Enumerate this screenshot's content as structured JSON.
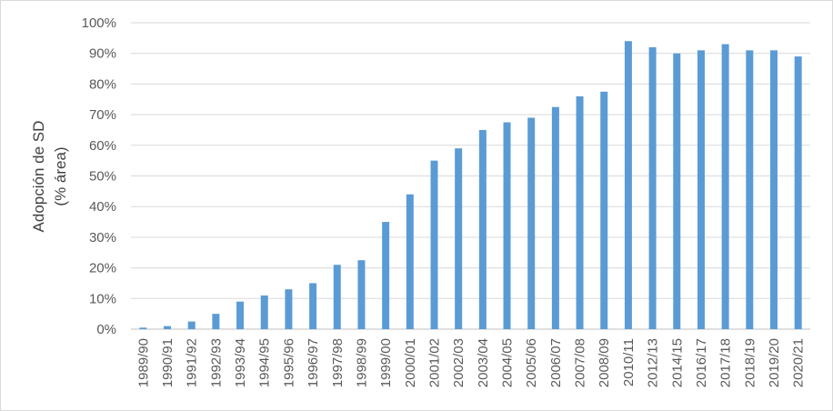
{
  "chart_data": {
    "type": "bar",
    "title": "",
    "xlabel": "",
    "ylabel_lines": [
      "Adopción de SD",
      "(% área)"
    ],
    "ylim": [
      0,
      100
    ],
    "y_ticks": [
      "0%",
      "10%",
      "20%",
      "30%",
      "40%",
      "50%",
      "60%",
      "70%",
      "80%",
      "90%",
      "100%"
    ],
    "grid": true,
    "legend": "none",
    "bar_color": "#5b9bd5",
    "categories": [
      "1989/90",
      "1990/91",
      "1991/92",
      "1992/93",
      "1993/94",
      "1994/95",
      "1995/96",
      "1996/97",
      "1997/98",
      "1998/99",
      "1999/00",
      "2000/01",
      "2001/02",
      "2002/03",
      "2003/04",
      "2004/05",
      "2005/06",
      "2006/07",
      "2007/08",
      "2008/09",
      "2010/11",
      "2012/13",
      "2014/15",
      "2016/17",
      "2017/18",
      "2018/19",
      "2019/20",
      "2020/21"
    ],
    "values": [
      0.5,
      1,
      2.5,
      5,
      9,
      11,
      13,
      15,
      21,
      22.5,
      35,
      44,
      55,
      59,
      65,
      67.5,
      69,
      72.5,
      76,
      77.5,
      94,
      92,
      90,
      91,
      93,
      91,
      91,
      89
    ]
  }
}
